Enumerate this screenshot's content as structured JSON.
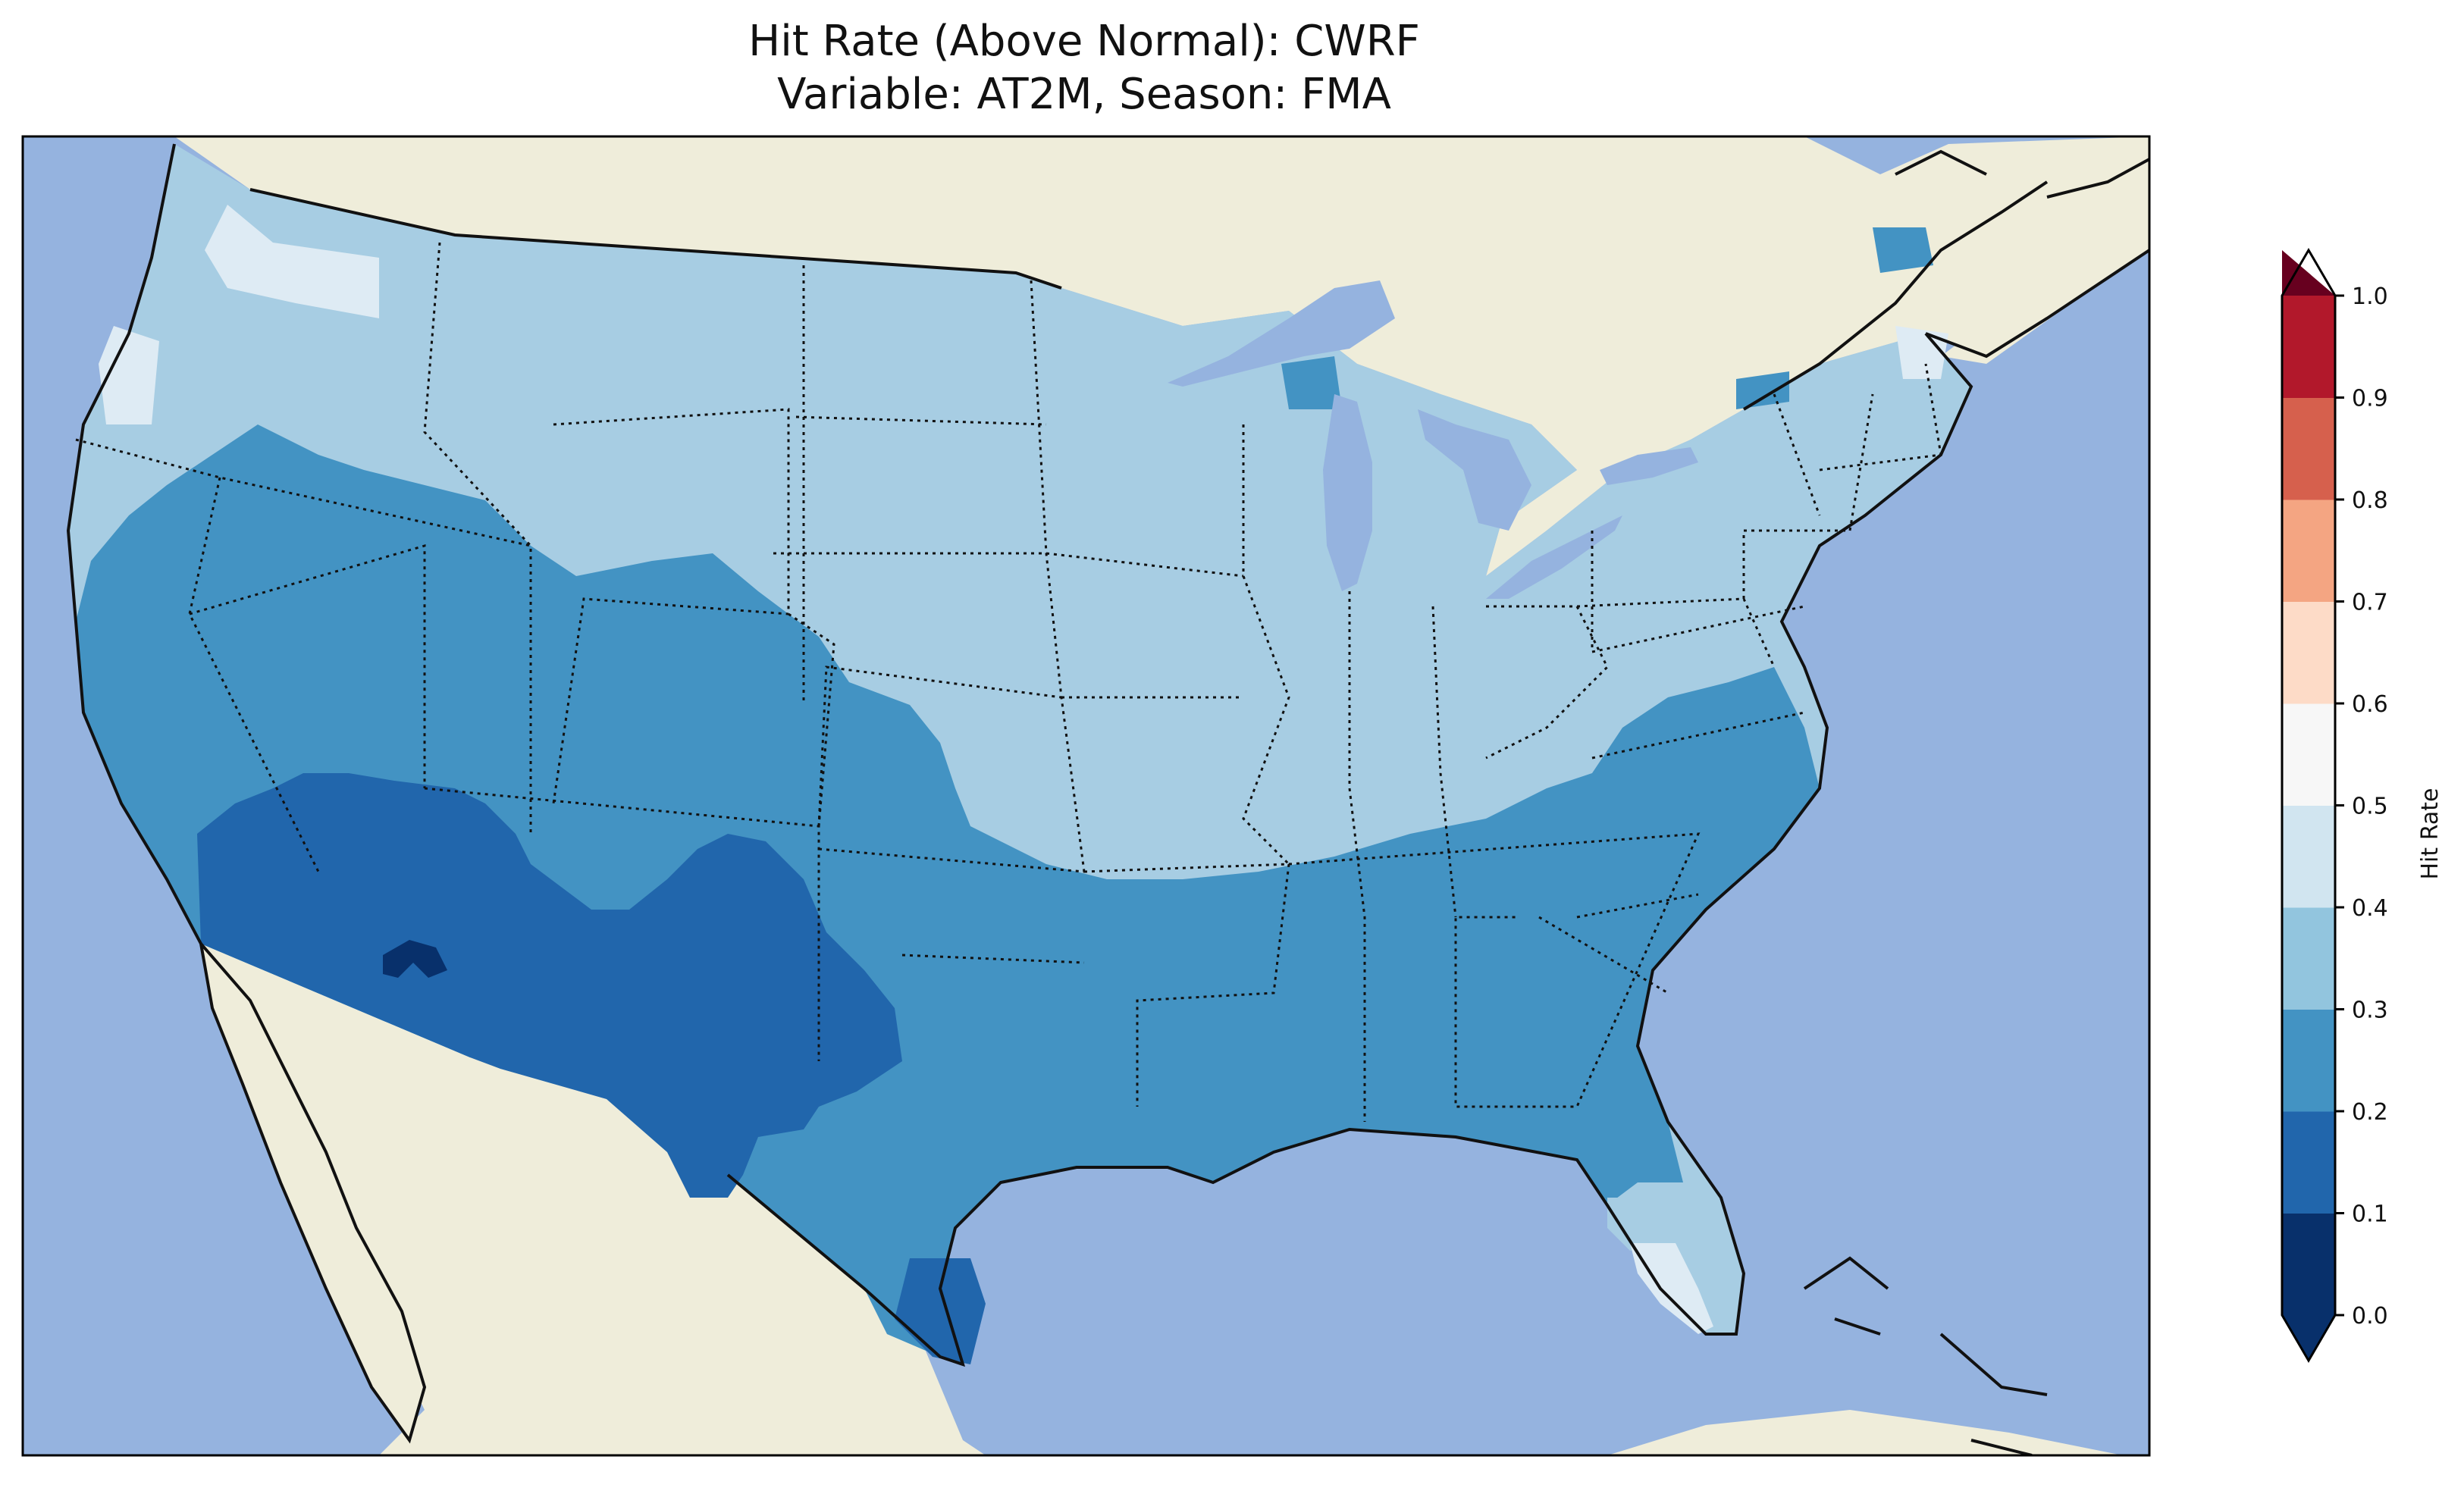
{
  "title": {
    "line1": "Hit Rate (Above Normal): CWRF",
    "line2": "Variable: AT2M, Season: FMA"
  },
  "colorbar": {
    "label": "Hit Rate",
    "ticks": [
      "0.0",
      "0.1",
      "0.2",
      "0.3",
      "0.4",
      "0.5",
      "0.6",
      "0.7",
      "0.8",
      "0.9",
      "1.0"
    ],
    "bins": [
      "#08306b",
      "#2166ac",
      "#4393c3",
      "#92c5de",
      "#d1e5f0",
      "#f7f7f7",
      "#fddbc7",
      "#f4a582",
      "#d6604d",
      "#b2182b",
      "#67001f"
    ],
    "extend": "both"
  },
  "map": {
    "ocean_color": "#95b3df",
    "land_color": "#efedda",
    "region_colors": {
      "lt_0_1": "#08306b",
      "r_0_1_0_2": "#2166ac",
      "r_0_2_0_3": "#4393c3",
      "r_0_3_0_4": "#a7cde3",
      "r_0_4_0_5": "#deebf4"
    }
  }
}
